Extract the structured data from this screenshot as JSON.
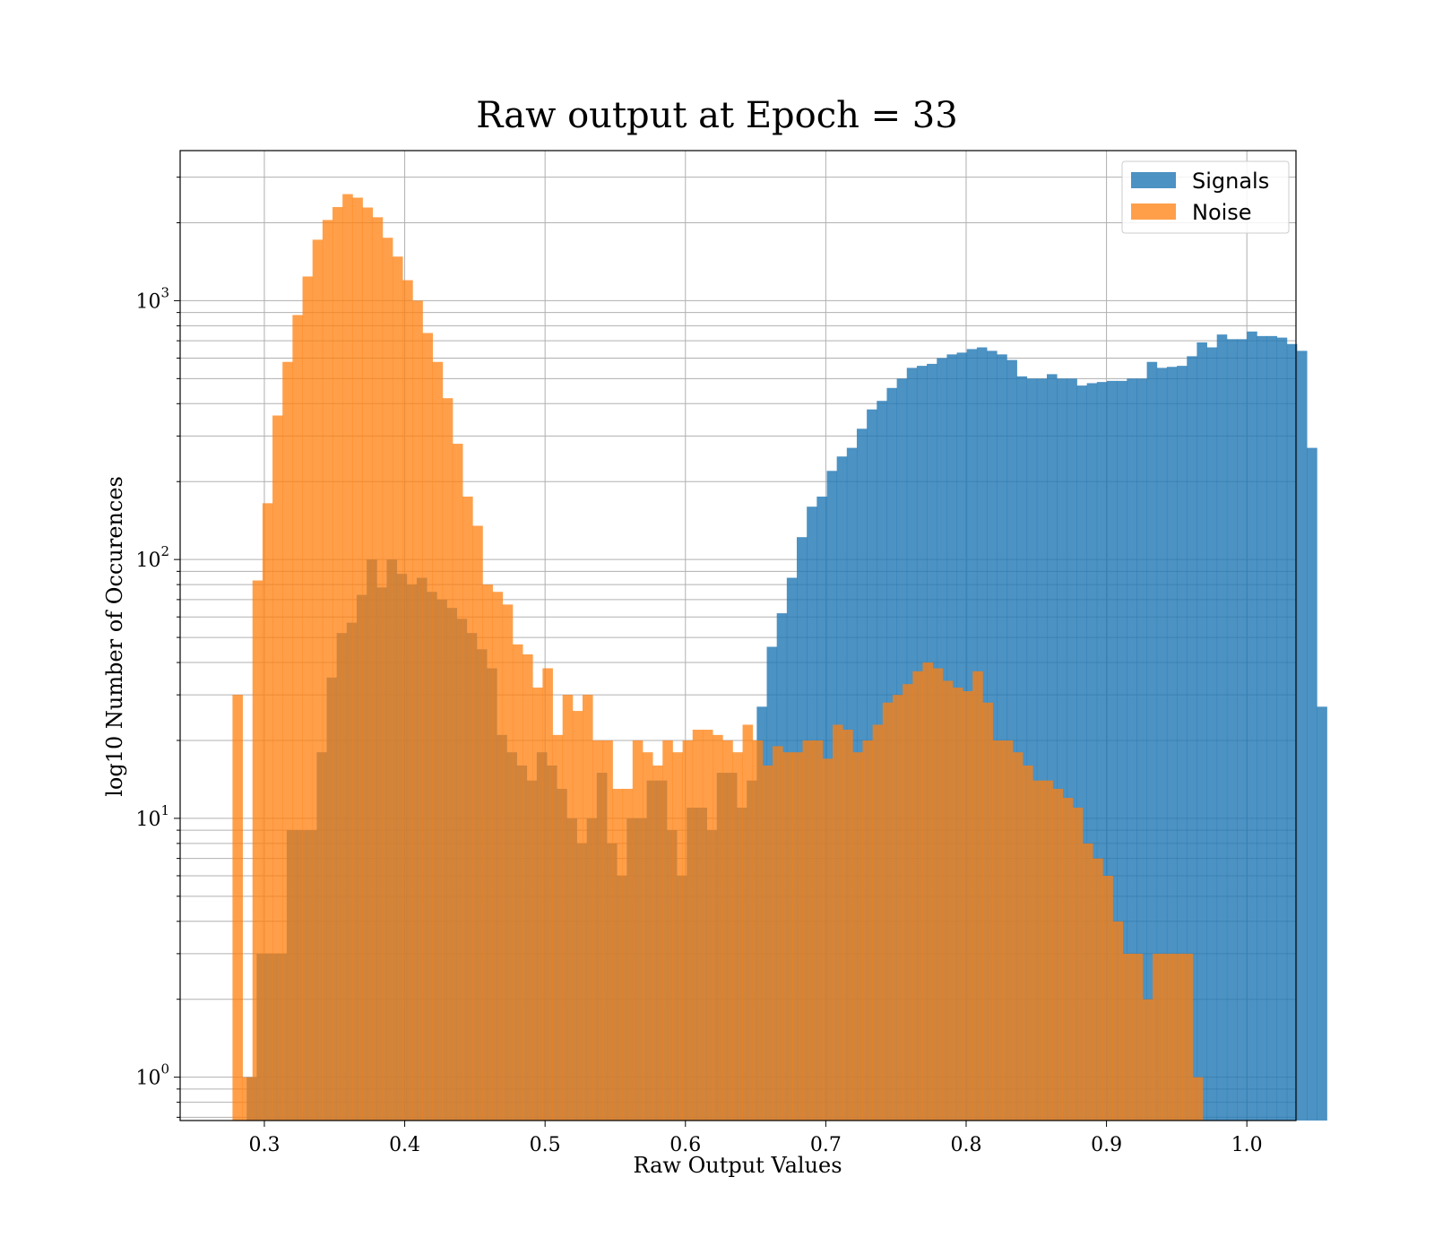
{
  "chart_data": {
    "type": "histogram",
    "title": "Raw output at Epoch = 33",
    "xlabel": "Raw Output Values",
    "ylabel": "log10 Number of Occurences",
    "xlim": [
      0.24,
      1.035
    ],
    "ylim": [
      0.68,
      3800
    ],
    "yscale": "log",
    "grid": true,
    "legend_position": "top-right",
    "xticks": [
      {
        "value": 0.3,
        "label": "0.3"
      },
      {
        "value": 0.4,
        "label": "0.4"
      },
      {
        "value": 0.5,
        "label": "0.5"
      },
      {
        "value": 0.6,
        "label": "0.6"
      },
      {
        "value": 0.7,
        "label": "0.7"
      },
      {
        "value": 0.8,
        "label": "0.8"
      },
      {
        "value": 0.9,
        "label": "0.9"
      },
      {
        "value": 1.0,
        "label": "1.0"
      }
    ],
    "yticks": [
      {
        "value": 1,
        "base": "10",
        "exp": "0"
      },
      {
        "value": 10,
        "base": "10",
        "exp": "1"
      },
      {
        "value": 100,
        "base": "10",
        "exp": "2"
      },
      {
        "value": 1000,
        "base": "10",
        "exp": "3"
      }
    ],
    "series": [
      {
        "name": "Signals",
        "color": "#1f77b4",
        "opacity": 0.8,
        "bin_start": 0.2874,
        "bin_width": 0.007126,
        "counts": [
          1,
          3,
          3,
          3,
          9,
          9,
          9,
          18,
          35,
          52,
          57,
          73,
          100,
          78,
          100,
          88,
          80,
          85,
          75,
          70,
          65,
          59,
          52,
          45,
          38,
          21,
          18,
          16,
          14,
          18,
          16,
          13,
          10,
          8,
          10,
          15,
          8,
          6,
          10,
          10,
          14,
          14,
          9,
          6,
          11,
          11,
          9,
          15,
          15,
          11,
          14,
          27,
          46,
          62,
          85,
          122,
          160,
          175,
          220,
          250,
          270,
          320,
          380,
          410,
          460,
          500,
          550,
          560,
          570,
          600,
          620,
          630,
          650,
          660,
          640,
          620,
          590,
          510,
          500,
          500,
          520,
          500,
          500,
          470,
          480,
          485,
          490,
          490,
          500,
          500,
          580,
          550,
          555,
          560,
          610,
          690,
          660,
          740,
          710,
          710,
          760,
          730,
          730,
          720,
          680,
          640,
          270,
          27
        ]
      },
      {
        "name": "Noise",
        "color": "#ff7f0e",
        "opacity": 0.75,
        "bin_start": 0.2773,
        "bin_width": 0.007126,
        "counts": [
          30,
          1,
          83,
          165,
          360,
          580,
          880,
          1240,
          1720,
          2050,
          2300,
          2580,
          2500,
          2290,
          2100,
          1750,
          1480,
          1200,
          1000,
          750,
          580,
          420,
          280,
          175,
          135,
          80,
          75,
          67,
          47,
          43,
          32,
          38,
          21,
          30,
          26,
          30,
          20,
          20,
          13,
          13,
          20,
          18,
          16,
          20,
          18,
          20,
          22,
          22,
          21,
          20,
          18,
          23,
          20,
          16,
          19,
          18,
          18,
          20,
          20,
          17,
          23,
          22,
          18,
          20,
          23,
          28,
          30,
          33,
          37,
          40,
          38,
          34,
          32,
          31,
          37,
          28,
          20,
          20,
          18,
          16,
          14,
          14,
          13,
          12,
          11,
          8,
          7,
          6,
          4,
          3,
          3,
          2,
          3,
          3,
          3,
          3,
          1
        ]
      }
    ]
  }
}
